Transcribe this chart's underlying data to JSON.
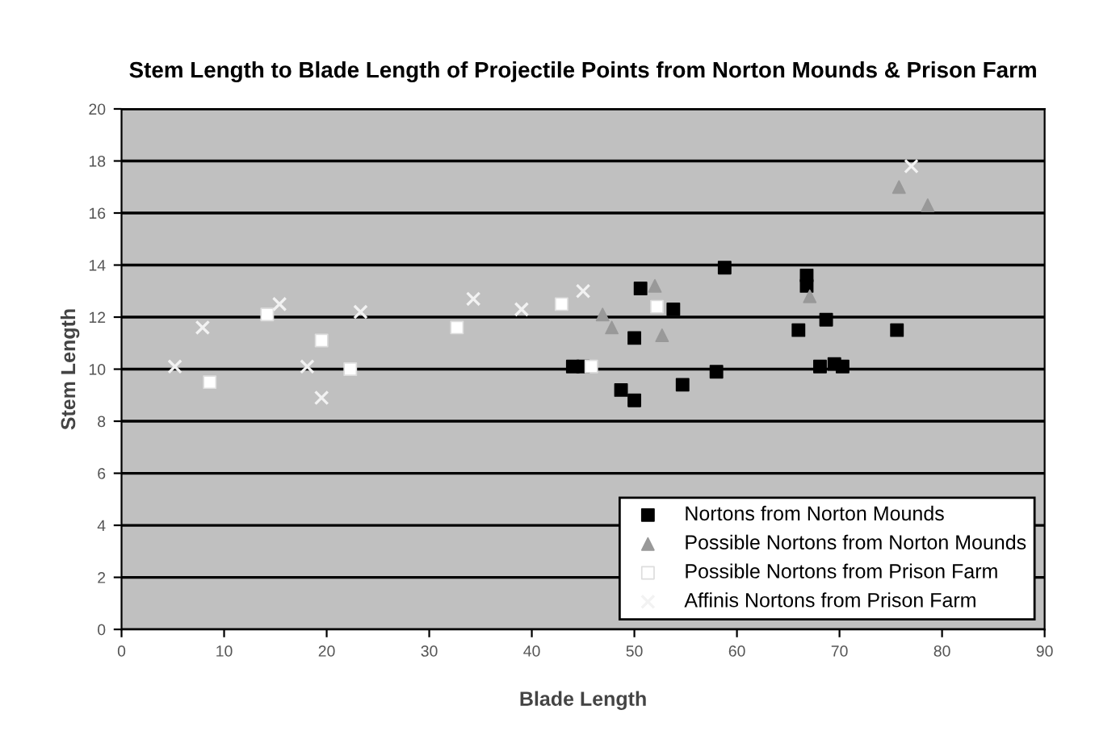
{
  "chart_data": {
    "type": "scatter",
    "title": "Stem Length to Blade Length of Projectile Points from Norton Mounds & Prison Farm",
    "xlabel": "Blade Length",
    "ylabel": "Stem Length",
    "xlim": [
      0,
      90
    ],
    "xticks": [
      0,
      10,
      20,
      30,
      40,
      50,
      60,
      70,
      80,
      90
    ],
    "ylim": [
      0,
      20
    ],
    "yticks": [
      0,
      2,
      4,
      6,
      8,
      10,
      12,
      14,
      16,
      18,
      20
    ],
    "grid": "y",
    "legend": "bottom right",
    "series": [
      {
        "name": "Nortons from Norton Mounds",
        "color": "#000000",
        "marker": "square",
        "x": [
          58.8,
          66.8,
          66.8,
          50.6,
          53.8,
          68.7,
          66.0,
          75.6,
          50.0,
          44.0,
          45.0,
          68.1,
          69.5,
          70.3,
          58.0,
          54.7,
          48.7,
          50.0
        ],
        "values": [
          13.9,
          13.6,
          13.2,
          13.1,
          12.3,
          11.9,
          11.5,
          11.5,
          11.2,
          10.1,
          10.1,
          10.1,
          10.2,
          10.1,
          9.9,
          9.4,
          9.2,
          8.8
        ]
      },
      {
        "name": "Possible Nortons from Norton Mounds",
        "color": "#999999",
        "marker": "triangle",
        "x": [
          75.8,
          78.6,
          67.1,
          46.9,
          47.8,
          52.7,
          52.0
        ],
        "values": [
          17.0,
          16.3,
          12.8,
          12.1,
          11.6,
          11.3,
          13.2
        ]
      },
      {
        "name": "Possible Nortons from Prison Farm",
        "color": "#ffffff",
        "marker": "square",
        "x": [
          8.6,
          14.2,
          19.5,
          22.3,
          32.7,
          45.8,
          42.9,
          52.2
        ],
        "values": [
          9.5,
          12.1,
          11.1,
          10.0,
          11.6,
          10.1,
          12.5,
          12.4
        ]
      },
      {
        "name": "Affinis Nortons from Prison Farm",
        "color": "#f2f2f2",
        "marker": "cross",
        "x": [
          5.2,
          7.9,
          15.4,
          18.1,
          19.5,
          23.3,
          34.3,
          39.0,
          45.0,
          77.0
        ],
        "values": [
          10.1,
          11.6,
          12.5,
          10.1,
          8.9,
          12.2,
          12.7,
          12.3,
          13.0,
          17.8
        ]
      }
    ]
  }
}
